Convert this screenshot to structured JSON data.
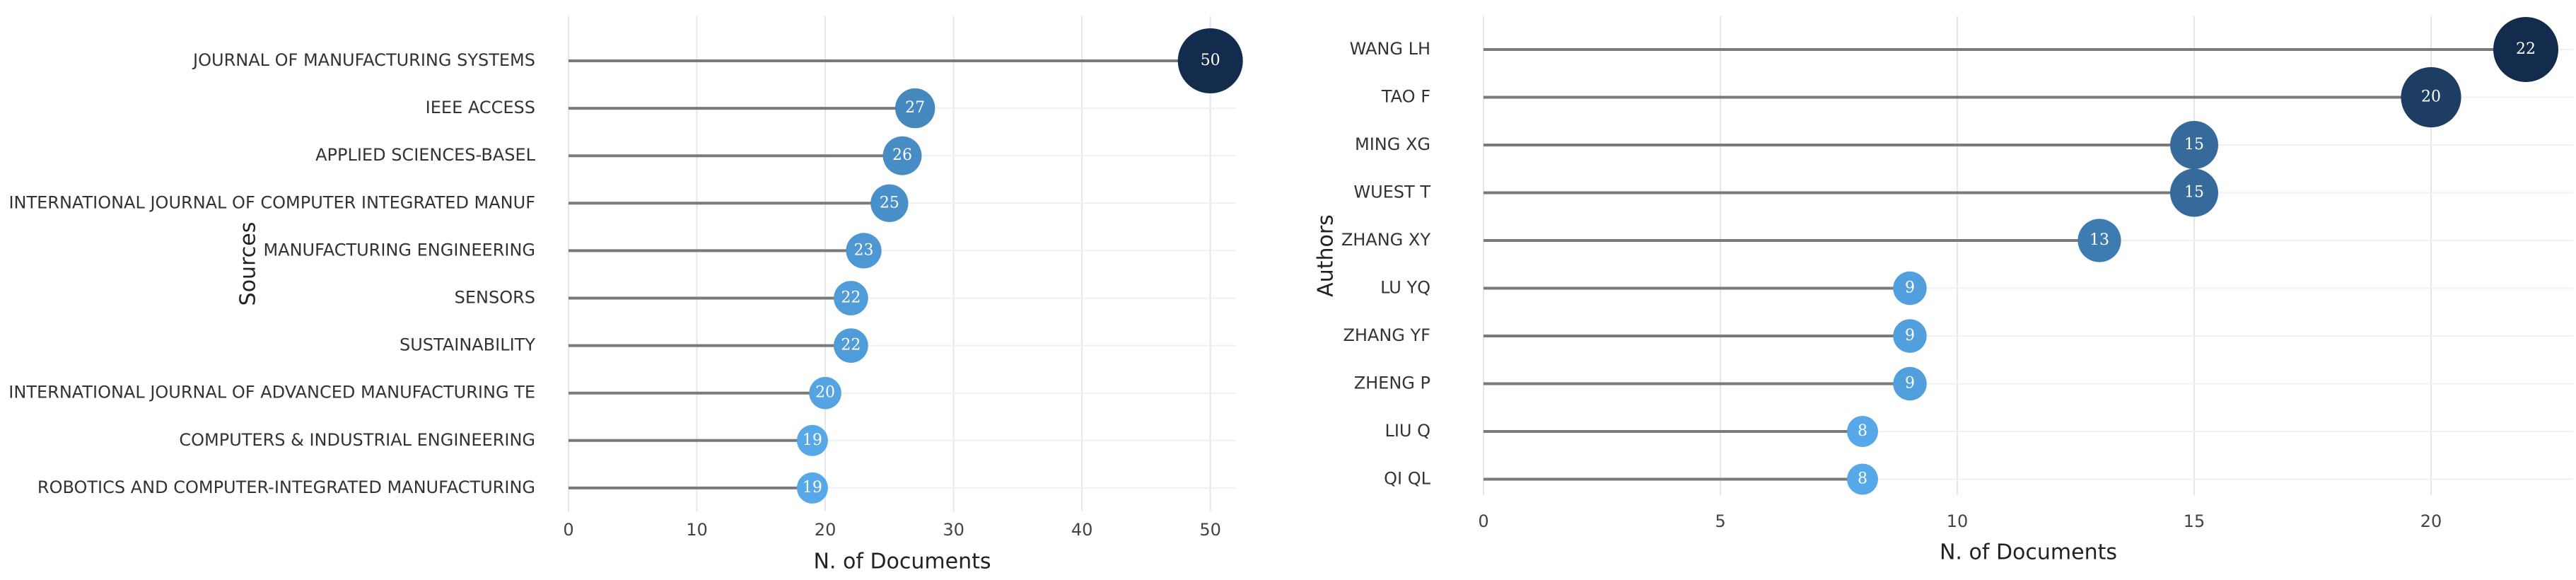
{
  "chart_data": [
    {
      "type": "lollipop",
      "x_label": "N. of Documents",
      "y_label": "Sources",
      "categories": [
        "JOURNAL OF MANUFACTURING SYSTEMS",
        "IEEE ACCESS",
        "APPLIED SCIENCES-BASEL",
        "INTERNATIONAL JOURNAL OF COMPUTER INTEGRATED MANUF",
        "MANUFACTURING ENGINEERING",
        "SENSORS",
        "SUSTAINABILITY",
        "INTERNATIONAL JOURNAL OF ADVANCED MANUFACTURING TE",
        "COMPUTERS & INDUSTRIAL ENGINEERING",
        "ROBOTICS AND COMPUTER-INTEGRATED MANUFACTURING"
      ],
      "values": [
        50,
        27,
        26,
        25,
        23,
        22,
        22,
        20,
        19,
        19
      ],
      "xlim": [
        0,
        52
      ],
      "xticks": [
        0,
        10,
        20,
        30,
        40,
        50
      ],
      "grid": true,
      "color_scale": [
        "#56a8e8",
        "#132b4c"
      ]
    },
    {
      "type": "lollipop",
      "x_label": "N. of Documents",
      "y_label": "Authors",
      "categories": [
        "WANG LH",
        "TAO F",
        "MING XG",
        "WUEST T",
        "ZHANG XY",
        "LU YQ",
        "ZHANG YF",
        "ZHENG P",
        "LIU Q",
        "QI QL"
      ],
      "values": [
        22,
        20,
        15,
        15,
        13,
        9,
        9,
        9,
        8,
        8
      ],
      "xlim": [
        0,
        23
      ],
      "xticks": [
        0,
        5,
        10,
        15,
        20
      ],
      "grid": true,
      "color_scale": [
        "#56a8e8",
        "#132b4c"
      ]
    }
  ]
}
